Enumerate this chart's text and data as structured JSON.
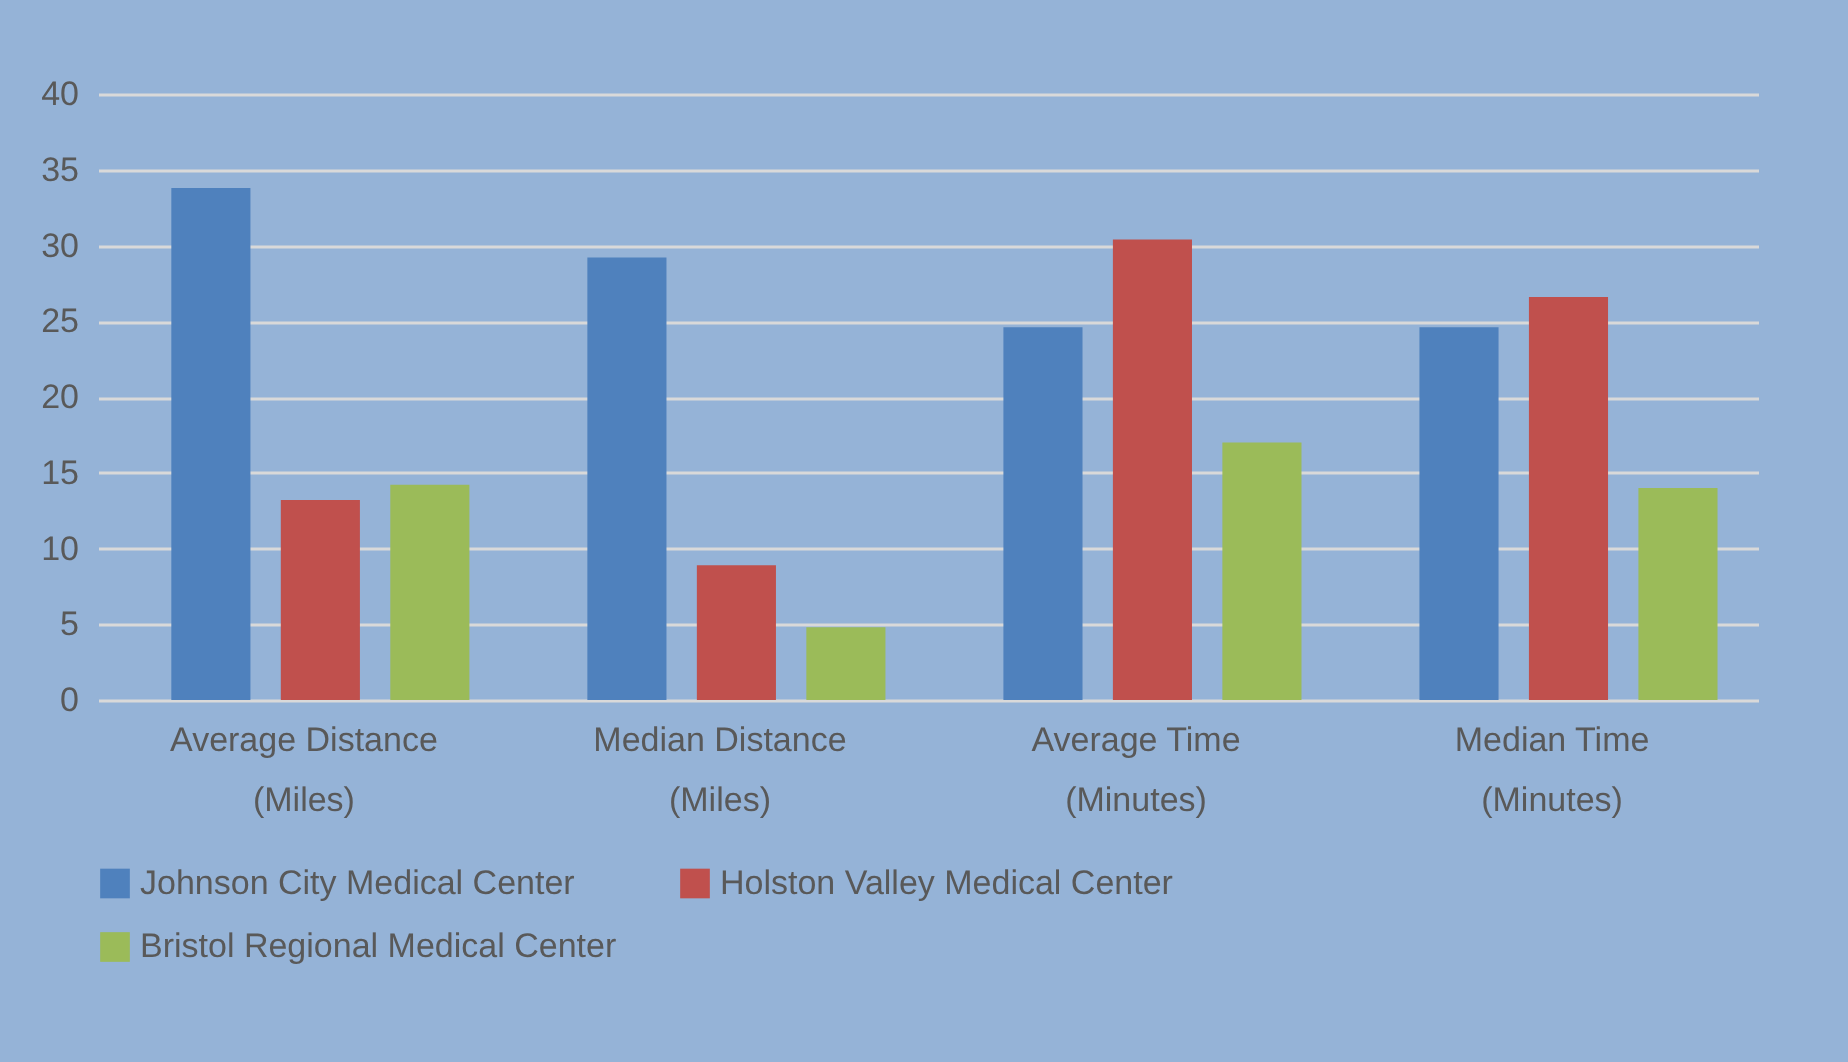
{
  "chart_data": {
    "type": "bar",
    "categories": [
      "Average Distance\n(Miles)",
      "Median Distance\n(Miles)",
      "Average Time\n(Minutes)",
      "Median Time\n(Minutes)"
    ],
    "series": [
      {
        "name": "Johnson City Medical Center",
        "color": "#4f81bd",
        "values": [
          33.8,
          29.2,
          24.6,
          24.6
        ]
      },
      {
        "name": "Holston Valley Medical Center",
        "color": "#c0504d",
        "values": [
          13.2,
          8.9,
          30.4,
          26.6
        ]
      },
      {
        "name": "Bristol Regional Medical Center",
        "color": "#9bbb59",
        "values": [
          14.2,
          4.8,
          17.0,
          14.0
        ]
      }
    ],
    "ylim": [
      0,
      40
    ],
    "yticks": [
      0,
      5,
      10,
      15,
      20,
      25,
      30,
      35,
      40
    ],
    "grid": "y",
    "legend": "bottom"
  }
}
